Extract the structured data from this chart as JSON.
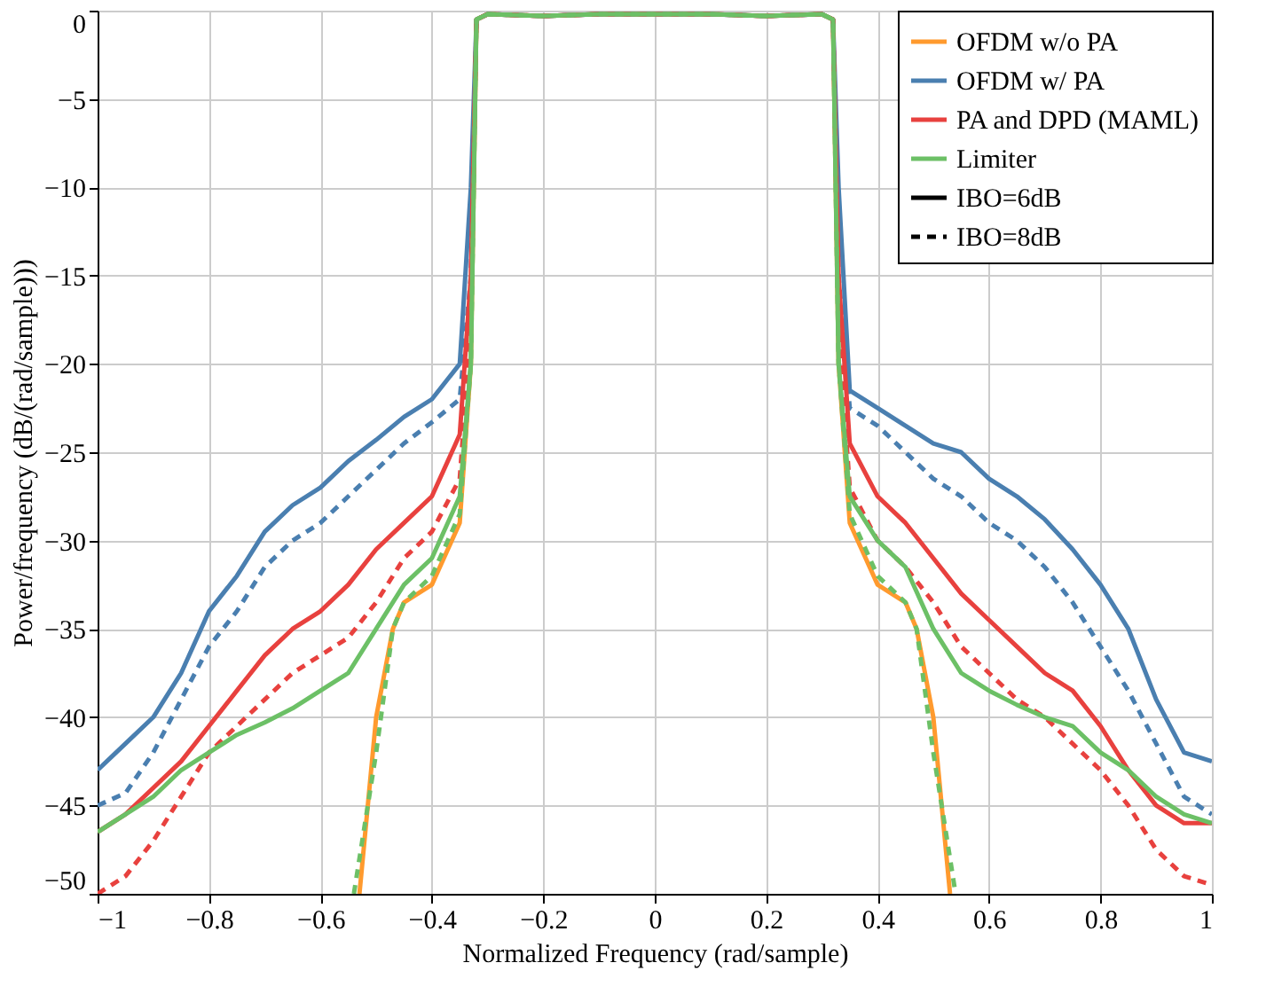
{
  "chart_data": {
    "type": "line",
    "xlabel": "Normalized Frequency (rad/sample)",
    "ylabel": "Power/frequency (dB/(rad/sample)))",
    "xlim": [
      -1,
      1
    ],
    "ylim": [
      -50,
      0
    ],
    "xticks": [
      -1,
      -0.8,
      -0.6,
      -0.4,
      -0.2,
      0,
      0.2,
      0.4,
      0.6,
      0.8,
      1
    ],
    "yticks": [
      -50,
      -45,
      -40,
      -35,
      -30,
      -25,
      -20,
      -15,
      -10,
      -5,
      0
    ],
    "grid": true,
    "legend": "top right",
    "marker": "none",
    "series": [
      {
        "name": "OFDM w/o PA",
        "color": "#ff9a2e",
        "line_style": "solid",
        "x": [
          -0.53,
          -0.5,
          -0.47,
          -0.45,
          -0.4,
          -0.35,
          -0.33,
          -0.32,
          -0.3,
          -0.2,
          -0.1,
          0,
          0.1,
          0.2,
          0.3,
          0.32,
          0.33,
          0.35,
          0.4,
          0.45,
          0.47,
          0.5,
          0.53
        ],
        "values": [
          -50,
          -40,
          -35,
          -33.5,
          -32.5,
          -29,
          -20,
          -0.5,
          -0.2,
          -0.3,
          -0.2,
          -0.2,
          -0.2,
          -0.3,
          -0.2,
          -0.5,
          -20,
          -29,
          -32.5,
          -33.5,
          -35,
          -40,
          -50
        ]
      },
      {
        "name": "OFDM w/ PA",
        "color": "#4a7fb0",
        "line_style": "solid",
        "x": [
          -1,
          -0.95,
          -0.9,
          -0.85,
          -0.8,
          -0.75,
          -0.7,
          -0.65,
          -0.6,
          -0.55,
          -0.5,
          -0.45,
          -0.4,
          -0.35,
          -0.33,
          -0.32,
          -0.3,
          -0.2,
          -0.1,
          0,
          0.1,
          0.2,
          0.3,
          0.32,
          0.33,
          0.35,
          0.4,
          0.45,
          0.5,
          0.55,
          0.6,
          0.65,
          0.7,
          0.75,
          0.8,
          0.85,
          0.9,
          0.95,
          1
        ],
        "values": [
          -43,
          -41.5,
          -40,
          -37.5,
          -34,
          -32,
          -29.5,
          -28,
          -27,
          -25.5,
          -24.3,
          -23,
          -22,
          -20,
          -10,
          -0.5,
          -0.2,
          -0.3,
          -0.2,
          -0.2,
          -0.2,
          -0.3,
          -0.2,
          -0.5,
          -10,
          -21.5,
          -22.5,
          -23.5,
          -24.5,
          -25,
          -26.5,
          -27.5,
          -28.8,
          -30.5,
          -32.5,
          -35,
          -39,
          -42,
          -42.5
        ]
      },
      {
        "color": "#4a7fb0",
        "line_style": "dashed",
        "x": [
          -1,
          -0.95,
          -0.9,
          -0.85,
          -0.8,
          -0.75,
          -0.7,
          -0.65,
          -0.6,
          -0.55,
          -0.5,
          -0.45,
          -0.4,
          -0.35,
          -0.33,
          -0.32,
          -0.3,
          -0.2,
          -0.1,
          0,
          0.1,
          0.2,
          0.3,
          0.32,
          0.33,
          0.35,
          0.4,
          0.45,
          0.5,
          0.55,
          0.6,
          0.65,
          0.7,
          0.75,
          0.8,
          0.85,
          0.9,
          0.95,
          1
        ],
        "values": [
          -45,
          -44.3,
          -42,
          -39,
          -36,
          -34,
          -31.5,
          -30,
          -29,
          -27.5,
          -26,
          -24.5,
          -23.3,
          -22,
          -15,
          -0.5,
          -0.2,
          -0.3,
          -0.2,
          -0.2,
          -0.2,
          -0.3,
          -0.2,
          -0.5,
          -15,
          -22.5,
          -23.5,
          -25,
          -26.5,
          -27.5,
          -29,
          -30,
          -31.5,
          -33.5,
          -36,
          -38.5,
          -41.5,
          -44.5,
          -45.5
        ]
      },
      {
        "name": "PA and DPD (MAML)",
        "color": "#e8413e",
        "line_style": "solid",
        "x": [
          -1,
          -0.95,
          -0.9,
          -0.85,
          -0.8,
          -0.75,
          -0.7,
          -0.65,
          -0.6,
          -0.55,
          -0.5,
          -0.45,
          -0.4,
          -0.35,
          -0.33,
          -0.32,
          -0.3,
          -0.2,
          -0.1,
          0,
          0.1,
          0.2,
          0.3,
          0.32,
          0.33,
          0.35,
          0.4,
          0.45,
          0.5,
          0.55,
          0.6,
          0.65,
          0.7,
          0.75,
          0.8,
          0.85,
          0.9,
          0.95,
          1
        ],
        "values": [
          -46.5,
          -45.5,
          -44,
          -42.5,
          -40.5,
          -38.5,
          -36.5,
          -35,
          -34,
          -32.5,
          -30.5,
          -29,
          -27.5,
          -24,
          -15,
          -0.5,
          -0.2,
          -0.3,
          -0.2,
          -0.2,
          -0.2,
          -0.3,
          -0.2,
          -0.5,
          -15,
          -24.5,
          -27.5,
          -29,
          -31,
          -33,
          -34.5,
          -36,
          -37.5,
          -38.5,
          -40.5,
          -43,
          -45,
          -46,
          -46
        ]
      },
      {
        "color": "#e8413e",
        "line_style": "dashed",
        "x": [
          -1,
          -0.95,
          -0.9,
          -0.85,
          -0.8,
          -0.75,
          -0.7,
          -0.65,
          -0.6,
          -0.55,
          -0.5,
          -0.45,
          -0.4,
          -0.35,
          -0.33,
          -0.32,
          -0.3,
          -0.2,
          -0.1,
          0,
          0.1,
          0.2,
          0.3,
          0.32,
          0.33,
          0.35,
          0.4,
          0.45,
          0.5,
          0.55,
          0.6,
          0.65,
          0.7,
          0.75,
          0.8,
          0.85,
          0.9,
          0.95,
          1
        ],
        "values": [
          -50,
          -49,
          -47,
          -44.5,
          -42,
          -40.5,
          -39,
          -37.5,
          -36.5,
          -35.5,
          -33.5,
          -31,
          -29.5,
          -26.5,
          -18,
          -0.5,
          -0.2,
          -0.3,
          -0.2,
          -0.2,
          -0.2,
          -0.3,
          -0.2,
          -0.5,
          -18,
          -27,
          -30,
          -31.5,
          -33.5,
          -36,
          -37.5,
          -39,
          -40,
          -41.5,
          -43,
          -45,
          -47.5,
          -49,
          -49.5
        ]
      },
      {
        "name": "Limiter",
        "color": "#6cc066",
        "line_style": "solid",
        "x": [
          -1,
          -0.95,
          -0.9,
          -0.85,
          -0.8,
          -0.75,
          -0.7,
          -0.65,
          -0.6,
          -0.55,
          -0.5,
          -0.45,
          -0.4,
          -0.35,
          -0.33,
          -0.32,
          -0.3,
          -0.2,
          -0.1,
          0,
          0.1,
          0.2,
          0.3,
          0.32,
          0.33,
          0.35,
          0.4,
          0.45,
          0.5,
          0.55,
          0.6,
          0.65,
          0.7,
          0.75,
          0.8,
          0.85,
          0.9,
          0.95,
          1
        ],
        "values": [
          -46.5,
          -45.5,
          -44.5,
          -43,
          -42,
          -41,
          -40.3,
          -39.5,
          -38.5,
          -37.5,
          -35,
          -32.5,
          -31,
          -27.5,
          -20,
          -0.5,
          -0.2,
          -0.3,
          -0.2,
          -0.2,
          -0.2,
          -0.3,
          -0.2,
          -0.5,
          -20,
          -27.5,
          -30,
          -31.5,
          -35,
          -37.5,
          -38.5,
          -39.3,
          -40,
          -40.5,
          -42,
          -43,
          -44.5,
          -45.5,
          -46
        ]
      },
      {
        "color": "#6cc066",
        "line_style": "dashed",
        "x": [
          -0.54,
          -0.5,
          -0.47,
          -0.45,
          -0.4,
          -0.35,
          -0.33,
          -0.32,
          -0.3,
          -0.2,
          -0.1,
          0,
          0.1,
          0.2,
          0.3,
          0.32,
          0.33,
          0.35,
          0.4,
          0.45,
          0.47,
          0.5,
          0.54
        ],
        "values": [
          -50,
          -42,
          -35,
          -33.5,
          -32,
          -28.5,
          -20,
          -0.5,
          -0.2,
          -0.3,
          -0.2,
          -0.2,
          -0.2,
          -0.3,
          -0.2,
          -0.5,
          -20,
          -28.5,
          -32,
          -33.5,
          -35,
          -42,
          -50
        ]
      },
      {
        "name": "IBO=6dB",
        "color": "#000000",
        "line_style": "solid"
      },
      {
        "name": "IBO=8dB",
        "color": "#000000",
        "line_style": "dashed"
      }
    ]
  }
}
